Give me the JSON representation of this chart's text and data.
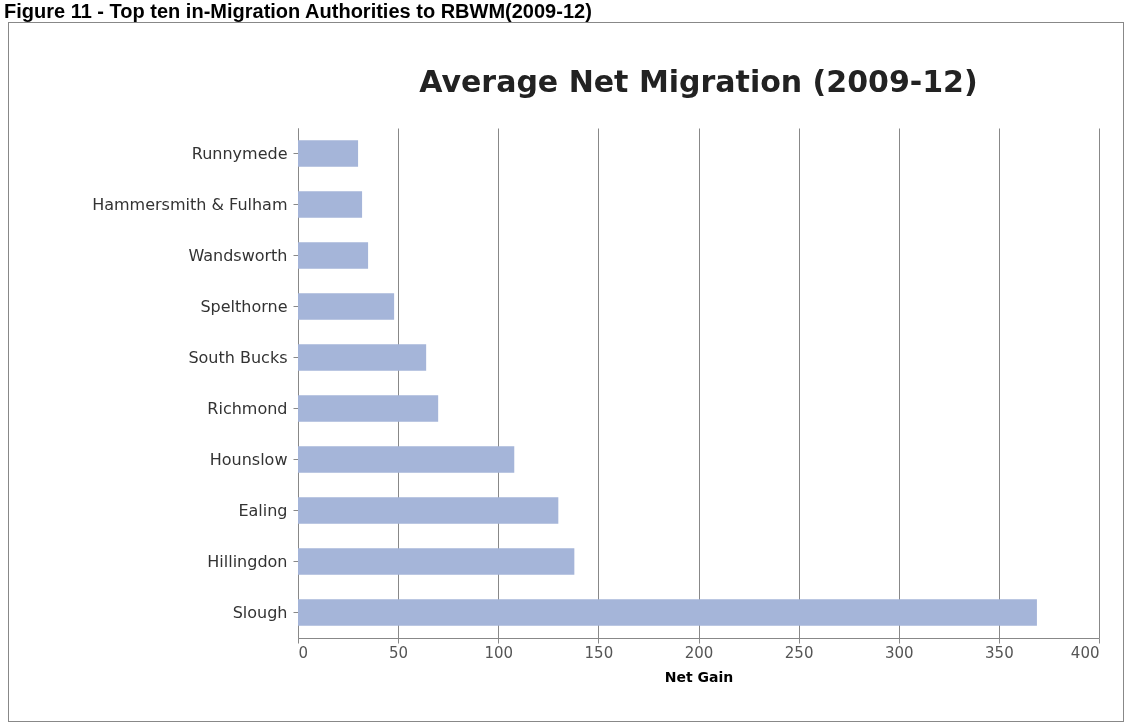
{
  "chart_data": {
    "type": "bar",
    "orientation": "horizontal",
    "title": "Average Net Migration (2009-12)",
    "xlabel": "Net Gain",
    "annotations": [
      "Figure 11 - Top ten in-Migration Authorities to RBWM(2009-12)"
    ],
    "categories": [
      "Runnymede",
      "Hammersmith & Fulham",
      "Wandsworth",
      "Spelthorne",
      "South Bucks",
      "Richmond",
      "Hounslow",
      "Ealing",
      "Hillingdon",
      "Slough"
    ],
    "values": [
      30,
      32,
      35,
      48,
      64,
      70,
      108,
      130,
      138,
      369
    ],
    "color": "#a5b5d9",
    "xlim": [
      0,
      400
    ],
    "xticks": [
      0,
      50,
      100,
      150,
      200,
      250,
      300,
      350,
      400
    ],
    "grid": "x"
  }
}
